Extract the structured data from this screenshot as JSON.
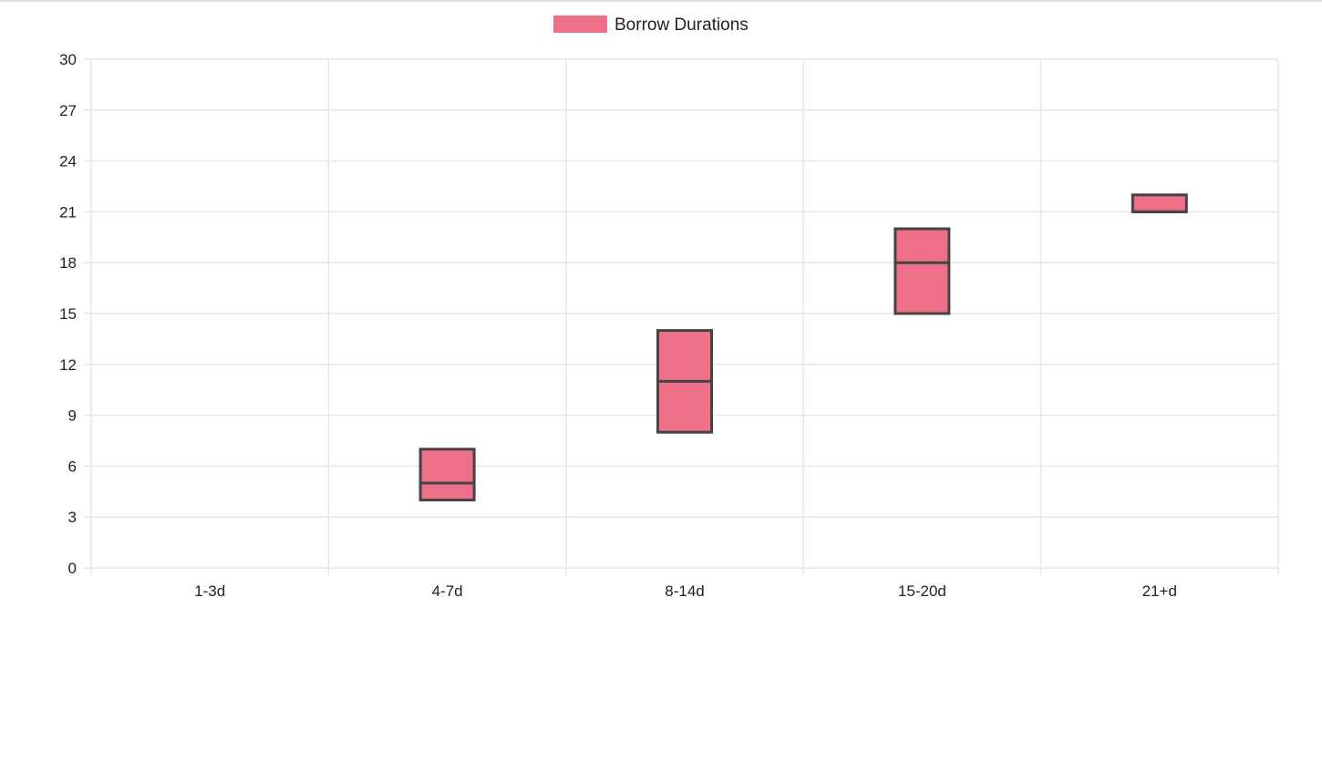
{
  "chart_data": {
    "type": "box",
    "legend": {
      "label": "Borrow Durations",
      "position": "top-center"
    },
    "categories": [
      "1-3d",
      "4-7d",
      "8-14d",
      "15-20d",
      "21+d"
    ],
    "series": [
      {
        "name": "Borrow Durations",
        "color": "#ee7088",
        "border_color": "#444444",
        "boxes": [
          null,
          {
            "q1": 4,
            "median": 5,
            "q3": 7
          },
          {
            "q1": 8,
            "median": 11,
            "q3": 14
          },
          {
            "q1": 15,
            "median": 18,
            "q3": 20
          },
          {
            "q1": 21,
            "median": 21,
            "q3": 22
          }
        ]
      }
    ],
    "ylim": [
      0,
      30
    ],
    "yticks": [
      0,
      3,
      6,
      9,
      12,
      15,
      18,
      21,
      24,
      27,
      30
    ],
    "grid": true,
    "grid_color": "#e6e6e6"
  }
}
